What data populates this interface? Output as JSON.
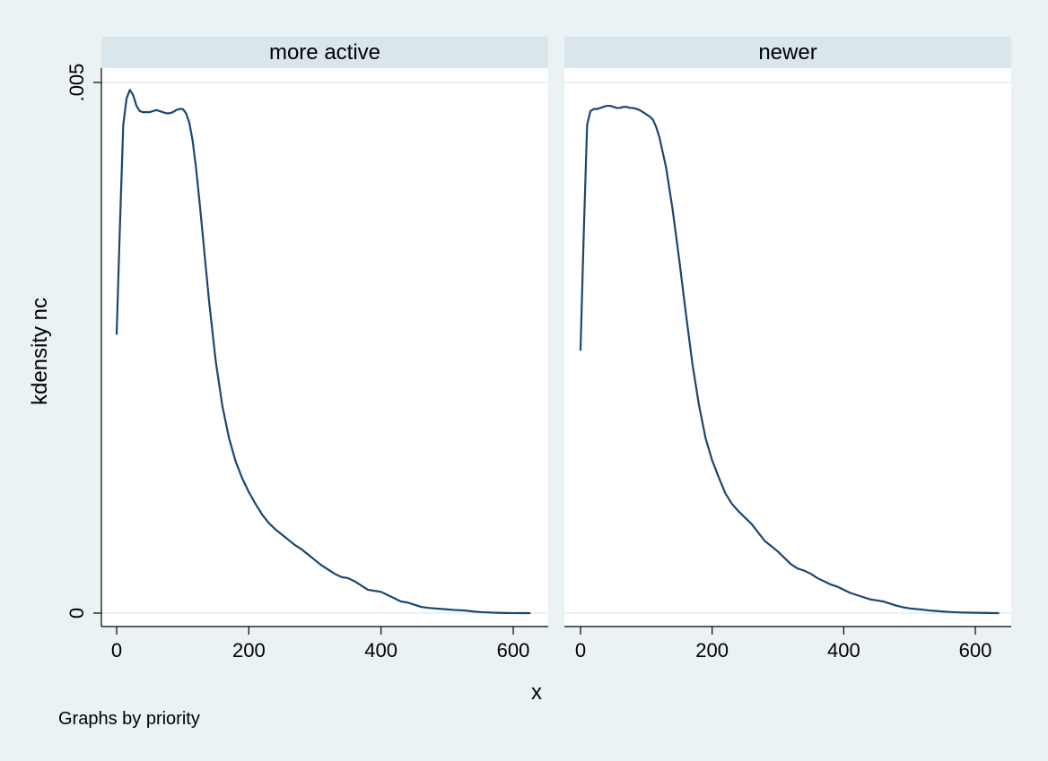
{
  "chart_data": {
    "type": "line",
    "xlabel": "x",
    "ylabel": "kdensity nc",
    "note": "Graphs by priority",
    "xlim": [
      0,
      650
    ],
    "ylim": [
      0,
      0.005
    ],
    "xticks": [
      {
        "value": 0,
        "label": "0"
      },
      {
        "value": 200,
        "label": "200"
      },
      {
        "value": 400,
        "label": "400"
      },
      {
        "value": 600,
        "label": "600"
      }
    ],
    "yticks": [
      {
        "value": 0,
        "label": "0"
      },
      {
        "value": 0.005,
        "label": ".005"
      }
    ],
    "grid": true,
    "line_color": "#1a476f",
    "panels": [
      {
        "title": "more active",
        "x": [
          0,
          5,
          10,
          15,
          20,
          25,
          30,
          35,
          40,
          45,
          50,
          55,
          60,
          65,
          70,
          75,
          80,
          85,
          90,
          95,
          100,
          105,
          110,
          115,
          120,
          125,
          130,
          135,
          140,
          150,
          160,
          170,
          180,
          190,
          200,
          210,
          220,
          230,
          240,
          250,
          260,
          270,
          280,
          290,
          300,
          310,
          320,
          330,
          340,
          350,
          360,
          370,
          380,
          390,
          400,
          410,
          420,
          430,
          440,
          450,
          460,
          470,
          480,
          490,
          500,
          510,
          520,
          530,
          540,
          550,
          560,
          570,
          580,
          590,
          600,
          610,
          620,
          625
        ],
        "y": [
          0.00263,
          0.00365,
          0.0046,
          0.00485,
          0.00493,
          0.00488,
          0.00478,
          0.00473,
          0.00472,
          0.00472,
          0.00472,
          0.00473,
          0.00474,
          0.00473,
          0.00472,
          0.00471,
          0.00471,
          0.00472,
          0.00474,
          0.00475,
          0.00475,
          0.00471,
          0.00462,
          0.00445,
          0.0042,
          0.0039,
          0.00358,
          0.00325,
          0.00293,
          0.00237,
          0.00195,
          0.00165,
          0.00143,
          0.00127,
          0.00114,
          0.00103,
          0.00093,
          0.00085,
          0.00079,
          0.00074,
          0.00069,
          0.00064,
          0.0006,
          0.00055,
          0.0005,
          0.00045,
          0.00041,
          0.00037,
          0.00034,
          0.00033,
          0.0003,
          0.00026,
          0.00022,
          0.00021,
          0.0002,
          0.00017,
          0.00014,
          0.00011,
          0.0001,
          8e-05,
          6e-05,
          5e-05,
          4.5e-05,
          4e-05,
          3.5e-05,
          3e-05,
          2.7e-05,
          2.2e-05,
          1.5e-05,
          1e-05,
          7e-06,
          4e-06,
          2e-06,
          1e-06,
          5e-07,
          2e-07,
          1e-07,
          0
        ]
      },
      {
        "title": "newer",
        "x": [
          0,
          5,
          10,
          15,
          20,
          25,
          30,
          35,
          40,
          45,
          50,
          55,
          60,
          65,
          70,
          75,
          80,
          85,
          90,
          95,
          100,
          105,
          110,
          115,
          120,
          130,
          140,
          150,
          160,
          170,
          180,
          190,
          200,
          210,
          220,
          230,
          240,
          250,
          260,
          270,
          280,
          290,
          300,
          310,
          320,
          330,
          340,
          350,
          360,
          370,
          380,
          390,
          400,
          410,
          420,
          430,
          440,
          450,
          460,
          470,
          480,
          490,
          500,
          510,
          520,
          530,
          540,
          550,
          560,
          570,
          580,
          590,
          600,
          610,
          620,
          630,
          635
        ],
        "y": [
          0.00248,
          0.0036,
          0.0046,
          0.00473,
          0.00475,
          0.00475,
          0.00476,
          0.00477,
          0.00478,
          0.00478,
          0.00477,
          0.00476,
          0.00476,
          0.00477,
          0.00477,
          0.00476,
          0.00476,
          0.00475,
          0.00474,
          0.00472,
          0.0047,
          0.00468,
          0.00465,
          0.00458,
          0.00448,
          0.0042,
          0.0038,
          0.00333,
          0.00283,
          0.00235,
          0.00196,
          0.00165,
          0.00144,
          0.00128,
          0.00113,
          0.00103,
          0.00096,
          0.0009,
          0.00084,
          0.00076,
          0.00068,
          0.00063,
          0.00058,
          0.00052,
          0.00046,
          0.00042,
          0.0004,
          0.00037,
          0.00033,
          0.0003,
          0.00027,
          0.00025,
          0.00022,
          0.00019,
          0.00017,
          0.00015,
          0.00013,
          0.00012,
          0.00011,
          9e-05,
          7e-05,
          5.5e-05,
          4.5e-05,
          3.8e-05,
          3.2e-05,
          2.5e-05,
          2e-05,
          1.5e-05,
          1.1e-05,
          8e-06,
          6e-06,
          4e-06,
          3e-06,
          2e-06,
          1e-06,
          2e-07,
          0
        ]
      }
    ]
  }
}
